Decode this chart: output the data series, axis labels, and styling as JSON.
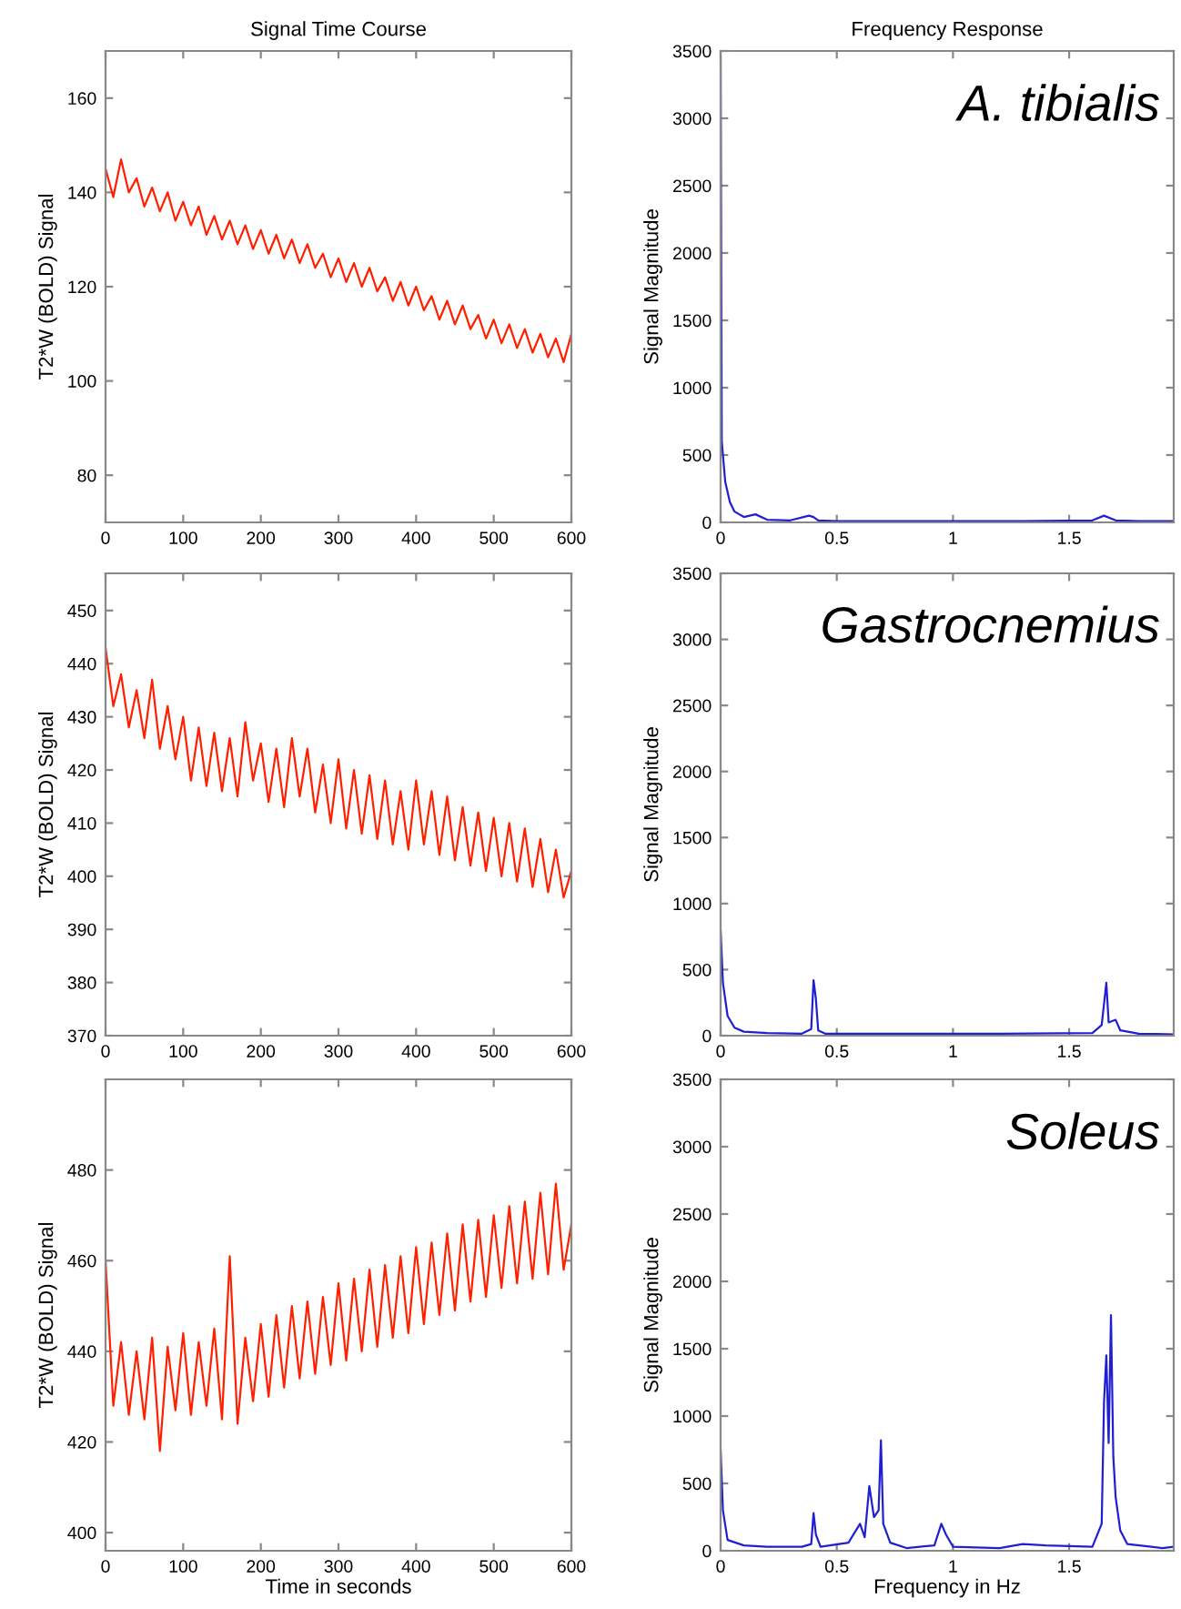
{
  "chart_data": [
    {
      "type": "line",
      "title": "Signal Time Course",
      "ylabel": "T2*W (BOLD) Signal",
      "x": [
        0,
        10,
        20,
        30,
        40,
        50,
        60,
        70,
        80,
        90,
        100,
        110,
        120,
        130,
        140,
        150,
        160,
        170,
        180,
        190,
        200,
        210,
        220,
        230,
        240,
        250,
        260,
        270,
        280,
        290,
        300,
        310,
        320,
        330,
        340,
        350,
        360,
        370,
        380,
        390,
        400,
        410,
        420,
        430,
        440,
        450,
        460,
        470,
        480,
        490,
        500,
        510,
        520,
        530,
        540,
        550,
        560,
        570,
        580,
        590,
        600
      ],
      "series": [
        {
          "color": "#ff2000",
          "values": [
            145,
            139,
            147,
            140,
            143,
            137,
            141,
            136,
            140,
            134,
            138,
            133,
            137,
            131,
            135,
            130,
            134,
            129,
            133,
            128,
            132,
            127,
            131,
            126,
            130,
            125,
            129,
            124,
            127,
            122,
            126,
            121,
            125,
            120,
            124,
            119,
            122,
            117,
            121,
            116,
            120,
            115,
            118,
            113,
            117,
            112,
            116,
            111,
            114,
            109,
            113,
            108,
            112,
            107,
            111,
            106,
            110,
            105,
            109,
            104,
            110
          ]
        }
      ],
      "xlim": [
        0,
        600
      ],
      "ylim": [
        70,
        170
      ],
      "xticks": [
        0,
        100,
        200,
        300,
        400,
        500,
        600
      ],
      "yticks": [
        80,
        100,
        120,
        140,
        160
      ]
    },
    {
      "type": "line",
      "title": "Frequency Response",
      "ylabel": "Signal Magnitude",
      "annotations": [
        "A. tibialis"
      ],
      "x": [
        0,
        0.005,
        0.02,
        0.04,
        0.06,
        0.1,
        0.15,
        0.2,
        0.3,
        0.38,
        0.4,
        0.42,
        0.5,
        0.7,
        1.0,
        1.3,
        1.6,
        1.65,
        1.7,
        1.8,
        1.95
      ],
      "series": [
        {
          "color": "#2020d0",
          "values": [
            3450,
            600,
            300,
            150,
            80,
            40,
            60,
            20,
            15,
            50,
            40,
            15,
            10,
            10,
            10,
            10,
            15,
            50,
            15,
            10,
            10
          ]
        }
      ],
      "xlim": [
        0,
        1.95
      ],
      "ylim": [
        0,
        3500
      ],
      "xticks": [
        0,
        0.5,
        1,
        1.5
      ],
      "yticks": [
        0,
        500,
        1000,
        1500,
        2000,
        2500,
        3000,
        3500
      ]
    },
    {
      "type": "line",
      "ylabel": "T2*W (BOLD) Signal",
      "x": [
        0,
        10,
        20,
        30,
        40,
        50,
        60,
        70,
        80,
        90,
        100,
        110,
        120,
        130,
        140,
        150,
        160,
        170,
        180,
        190,
        200,
        210,
        220,
        230,
        240,
        250,
        260,
        270,
        280,
        290,
        300,
        310,
        320,
        330,
        340,
        350,
        360,
        370,
        380,
        390,
        400,
        410,
        420,
        430,
        440,
        450,
        460,
        470,
        480,
        490,
        500,
        510,
        520,
        530,
        540,
        550,
        560,
        570,
        580,
        590,
        600
      ],
      "series": [
        {
          "color": "#ff2000",
          "values": [
            443,
            432,
            438,
            428,
            435,
            426,
            437,
            424,
            432,
            422,
            430,
            418,
            428,
            417,
            427,
            416,
            426,
            415,
            429,
            418,
            425,
            414,
            424,
            413,
            426,
            415,
            424,
            412,
            421,
            410,
            422,
            409,
            420,
            408,
            419,
            407,
            418,
            406,
            416,
            405,
            418,
            406,
            416,
            404,
            415,
            403,
            413,
            402,
            412,
            401,
            411,
            400,
            410,
            399,
            409,
            398,
            407,
            397,
            405,
            396,
            401
          ]
        }
      ],
      "xlim": [
        0,
        600
      ],
      "ylim": [
        370,
        457
      ],
      "xticks": [
        0,
        100,
        200,
        300,
        400,
        500,
        600
      ],
      "yticks": [
        370,
        380,
        390,
        400,
        410,
        420,
        430,
        440,
        450
      ]
    },
    {
      "type": "line",
      "ylabel": "Signal Magnitude",
      "annotations": [
        "Gastrocnemius"
      ],
      "x": [
        0,
        0.01,
        0.03,
        0.06,
        0.1,
        0.2,
        0.35,
        0.39,
        0.4,
        0.41,
        0.42,
        0.45,
        0.8,
        1.2,
        1.6,
        1.64,
        1.66,
        1.67,
        1.7,
        1.72,
        1.8,
        1.95
      ],
      "series": [
        {
          "color": "#2020d0",
          "values": [
            800,
            400,
            150,
            60,
            30,
            20,
            15,
            50,
            420,
            280,
            40,
            15,
            15,
            15,
            20,
            80,
            400,
            100,
            120,
            40,
            15,
            10
          ]
        }
      ],
      "xlim": [
        0,
        1.95
      ],
      "ylim": [
        0,
        3500
      ],
      "xticks": [
        0,
        0.5,
        1,
        1.5
      ],
      "yticks": [
        0,
        500,
        1000,
        1500,
        2000,
        2500,
        3000,
        3500
      ]
    },
    {
      "type": "line",
      "xlabel": "Time in seconds",
      "ylabel": "T2*W (BOLD) Signal",
      "x": [
        0,
        10,
        20,
        30,
        40,
        50,
        60,
        70,
        80,
        90,
        100,
        110,
        120,
        130,
        140,
        150,
        160,
        170,
        180,
        190,
        200,
        210,
        220,
        230,
        240,
        250,
        260,
        270,
        280,
        290,
        300,
        310,
        320,
        330,
        340,
        350,
        360,
        370,
        380,
        390,
        400,
        410,
        420,
        430,
        440,
        450,
        460,
        470,
        480,
        490,
        500,
        510,
        520,
        530,
        540,
        550,
        560,
        570,
        580,
        590,
        600
      ],
      "series": [
        {
          "color": "#ff2000",
          "values": [
            460,
            428,
            442,
            426,
            440,
            425,
            443,
            418,
            441,
            427,
            444,
            426,
            442,
            428,
            445,
            425,
            461,
            424,
            443,
            429,
            446,
            430,
            448,
            432,
            450,
            434,
            451,
            435,
            452,
            437,
            455,
            438,
            456,
            440,
            458,
            441,
            459,
            443,
            461,
            444,
            463,
            446,
            464,
            448,
            466,
            449,
            468,
            451,
            469,
            452,
            470,
            454,
            472,
            455,
            473,
            456,
            475,
            457,
            477,
            458,
            468
          ]
        }
      ],
      "xlim": [
        0,
        600
      ],
      "ylim": [
        396,
        500
      ],
      "xticks": [
        0,
        100,
        200,
        300,
        400,
        500,
        600
      ],
      "yticks": [
        400,
        420,
        440,
        460,
        480
      ]
    },
    {
      "type": "line",
      "xlabel": "Frequency in Hz",
      "ylabel": "Signal Magnitude",
      "annotations": [
        "Soleus"
      ],
      "x": [
        0,
        0.01,
        0.03,
        0.1,
        0.2,
        0.35,
        0.39,
        0.4,
        0.41,
        0.43,
        0.55,
        0.6,
        0.62,
        0.64,
        0.66,
        0.68,
        0.69,
        0.7,
        0.73,
        0.8,
        0.92,
        0.95,
        0.97,
        1.0,
        1.2,
        1.3,
        1.4,
        1.6,
        1.64,
        1.65,
        1.66,
        1.67,
        1.68,
        1.69,
        1.7,
        1.72,
        1.75,
        1.9,
        1.95
      ],
      "series": [
        {
          "color": "#2020d0",
          "values": [
            750,
            300,
            80,
            40,
            30,
            30,
            50,
            280,
            120,
            30,
            60,
            200,
            100,
            480,
            250,
            300,
            820,
            200,
            60,
            20,
            40,
            200,
            120,
            30,
            20,
            50,
            40,
            30,
            200,
            1100,
            1450,
            800,
            1750,
            700,
            400,
            150,
            50,
            20,
            30
          ]
        }
      ],
      "xlim": [
        0,
        1.95
      ],
      "ylim": [
        0,
        3500
      ],
      "xticks": [
        0,
        0.5,
        1,
        1.5
      ],
      "yticks": [
        0,
        500,
        1000,
        1500,
        2000,
        2500,
        3000,
        3500
      ]
    }
  ]
}
